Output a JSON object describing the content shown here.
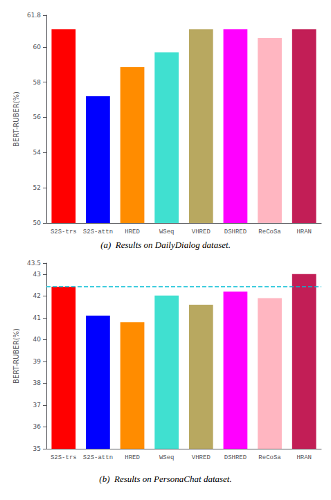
{
  "chart_data": [
    {
      "type": "bar",
      "title": "(a)  Results on DailyDialog dataset.",
      "ylabel": "BERT-RUBER(%)",
      "categories": [
        "S2S-trs",
        "S2S-attn",
        "HRED",
        "WSeq",
        "VHRED",
        "DSHRED",
        "ReCoSa",
        "HRAN"
      ],
      "values": [
        61.0,
        57.2,
        58.85,
        59.7,
        61.0,
        61.0,
        60.5,
        61.0
      ],
      "colors": [
        "#ff0000",
        "#0000ff",
        "#ff8c00",
        "#40e0d0",
        "#b8a860",
        "#ff00ff",
        "#ffb6c1",
        "#c21e56"
      ],
      "ylim": [
        50,
        61.8
      ],
      "yticks": [
        50,
        52,
        54,
        56,
        58,
        60
      ],
      "grid": false
    },
    {
      "type": "bar",
      "title": "(b)  Results on PersonaChat dataset.",
      "ylabel": "BERT-RUBER(%)",
      "categories": [
        "S2S-trs",
        "S2S-attn",
        "HRED",
        "WSeq",
        "VHRED",
        "DSHRED",
        "ReCoSa",
        "HRAN"
      ],
      "values": [
        42.42,
        41.1,
        40.8,
        42.02,
        41.6,
        42.2,
        41.9,
        43.0
      ],
      "colors": [
        "#ff0000",
        "#0000ff",
        "#ff8c00",
        "#40e0d0",
        "#b8a860",
        "#ff00ff",
        "#ffb6c1",
        "#c21e56"
      ],
      "ylim": [
        35,
        43.5
      ],
      "yticks": [
        35,
        36,
        37,
        38,
        39,
        40,
        41,
        42,
        43
      ],
      "grid": false,
      "reference_line": {
        "y": 42.42,
        "color": "#00bcd4",
        "line_style": "dashed"
      }
    }
  ]
}
